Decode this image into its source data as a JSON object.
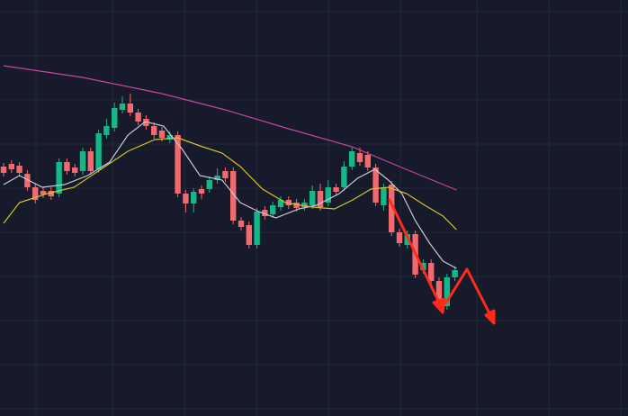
{
  "chart_data": {
    "type": "candlestick",
    "open": [
      277,
      280,
      278,
      269,
      254,
      250,
      250,
      247,
      282,
      276,
      272,
      294,
      274,
      312,
      320,
      340,
      347,
      337,
      330,
      322,
      317,
      307,
      312,
      247,
      236,
      252,
      252,
      262,
      272,
      272,
      217,
      212,
      190,
      229,
      224,
      232,
      240,
      237,
      232,
      234,
      250,
      237,
      254,
      254,
      277,
      292,
      290,
      276,
      234,
      257,
      204,
      190,
      202,
      162,
      170,
      150,
      122,
      154
    ],
    "high": [
      281,
      284,
      282,
      273,
      258,
      254,
      254,
      286,
      286,
      280,
      298,
      298,
      318,
      330,
      348,
      355,
      358,
      341,
      334,
      326,
      321,
      316,
      316,
      251,
      253,
      256,
      266,
      275,
      276,
      276,
      221,
      216,
      231,
      233,
      238,
      244,
      244,
      241,
      241,
      256,
      258,
      262,
      258,
      283,
      298,
      298,
      294,
      280,
      258,
      261,
      208,
      206,
      206,
      174,
      174,
      154,
      158,
      166
    ],
    "low": [
      266,
      270,
      266,
      250,
      236,
      242,
      240,
      243,
      268,
      266,
      268,
      268,
      270,
      308,
      316,
      336,
      333,
      323,
      318,
      308,
      305,
      303,
      243,
      226,
      226,
      241,
      248,
      258,
      260,
      213,
      206,
      186,
      186,
      218,
      220,
      228,
      230,
      227,
      228,
      230,
      228,
      233,
      245,
      250,
      273,
      278,
      272,
      233,
      228,
      200,
      188,
      186,
      153,
      158,
      146,
      118,
      118,
      150
    ],
    "close": [
      270,
      274,
      270,
      254,
      240,
      246,
      244,
      282,
      272,
      270,
      294,
      272,
      314,
      322,
      342,
      347,
      337,
      327,
      322,
      312,
      309,
      312,
      247,
      236,
      249,
      247,
      262,
      267,
      264,
      217,
      210,
      190,
      227,
      222,
      234,
      240,
      234,
      231,
      237,
      250,
      232,
      254,
      249,
      277,
      294,
      282,
      276,
      237,
      254,
      204,
      192,
      202,
      157,
      170,
      150,
      122,
      154,
      162
    ],
    "up_color": "#12b886",
    "down_color": "#f06a6e",
    "ylim": [
      0,
      462
    ],
    "yticks": [
      8,
      57,
      106,
      155,
      204,
      253,
      302,
      351,
      400,
      449
    ],
    "grid": true,
    "overlays": [
      {
        "color": "#c2479b",
        "x": [
          0,
          10,
          20,
          28,
          36,
          44,
          50,
          57.2
        ],
        "values": [
          389,
          376,
          358,
          340,
          319,
          299,
          277,
          251
        ]
      },
      {
        "color": "#c9c9d6",
        "x": [
          0,
          2,
          4.9,
          7.7,
          10.6,
          13.4,
          15.7,
          17.9,
          20.2,
          22.5,
          24.8,
          27.6,
          29.9,
          32.2,
          34.4,
          37.3,
          39.5,
          42.4,
          44.7,
          46.9,
          48.6,
          50.3,
          52,
          53.8,
          55.5,
          57.2
        ],
        "values": [
          257,
          267,
          254,
          257,
          267,
          282,
          312,
          327,
          322,
          297,
          267,
          262,
          237,
          227,
          220,
          230,
          234,
          247,
          264,
          274,
          262,
          247,
          217,
          192,
          172,
          164
        ]
      },
      {
        "color": "#d4c030",
        "x": [
          0,
          2,
          5.5,
          8.9,
          12.3,
          15.7,
          19.1,
          22,
          24.8,
          27.6,
          29.9,
          32.7,
          35.6,
          39,
          41.8,
          44.1,
          46.4,
          48.6,
          50.9,
          53.2,
          55.5,
          57.2
        ],
        "values": [
          214,
          237,
          247,
          254,
          274,
          294,
          307,
          309,
          300,
          292,
          277,
          252,
          237,
          232,
          230,
          240,
          252,
          254,
          247,
          234,
          222,
          207
        ]
      }
    ]
  }
}
